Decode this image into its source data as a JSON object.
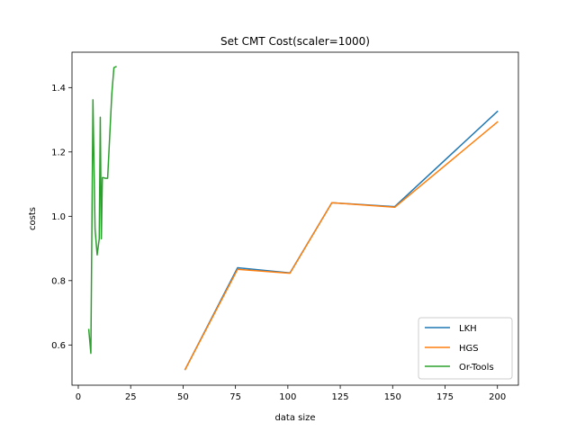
{
  "chart_data": {
    "type": "line",
    "title": "Set CMT Cost(scaler=1000)",
    "xlabel": "data size",
    "ylabel": "costs",
    "xlim": [
      -3,
      210
    ],
    "ylim": [
      0.475,
      1.51
    ],
    "xticks": [
      0,
      25,
      50,
      75,
      100,
      125,
      150,
      175,
      200
    ],
    "yticks": [
      0.6,
      0.8,
      1.0,
      1.2,
      1.4
    ],
    "ytick_labels": [
      "0.6",
      "0.8",
      "1.0",
      "1.2",
      "1.4"
    ],
    "grid": false,
    "legend_position": "lower-right",
    "series": [
      {
        "name": "LKH",
        "color": "#1f77b4",
        "x": [
          51,
          76,
          101,
          121,
          151,
          200
        ],
        "y": [
          0.524,
          0.84,
          0.824,
          1.042,
          1.03,
          1.326
        ]
      },
      {
        "name": "HGS",
        "color": "#ff7f0e",
        "x": [
          51,
          76,
          101,
          121,
          151,
          200
        ],
        "y": [
          0.524,
          0.835,
          0.823,
          1.042,
          1.028,
          1.293
        ]
      },
      {
        "name": "Or-Tools",
        "color": "#2ca02c",
        "x": [
          5,
          6,
          7,
          8,
          9,
          10,
          10.5,
          11,
          11.5,
          12,
          13,
          14,
          16,
          17,
          18
        ],
        "y": [
          0.648,
          0.574,
          1.362,
          0.96,
          0.88,
          0.93,
          1.308,
          0.93,
          1.12,
          1.12,
          1.118,
          1.118,
          1.38,
          1.462,
          1.465
        ]
      }
    ]
  }
}
